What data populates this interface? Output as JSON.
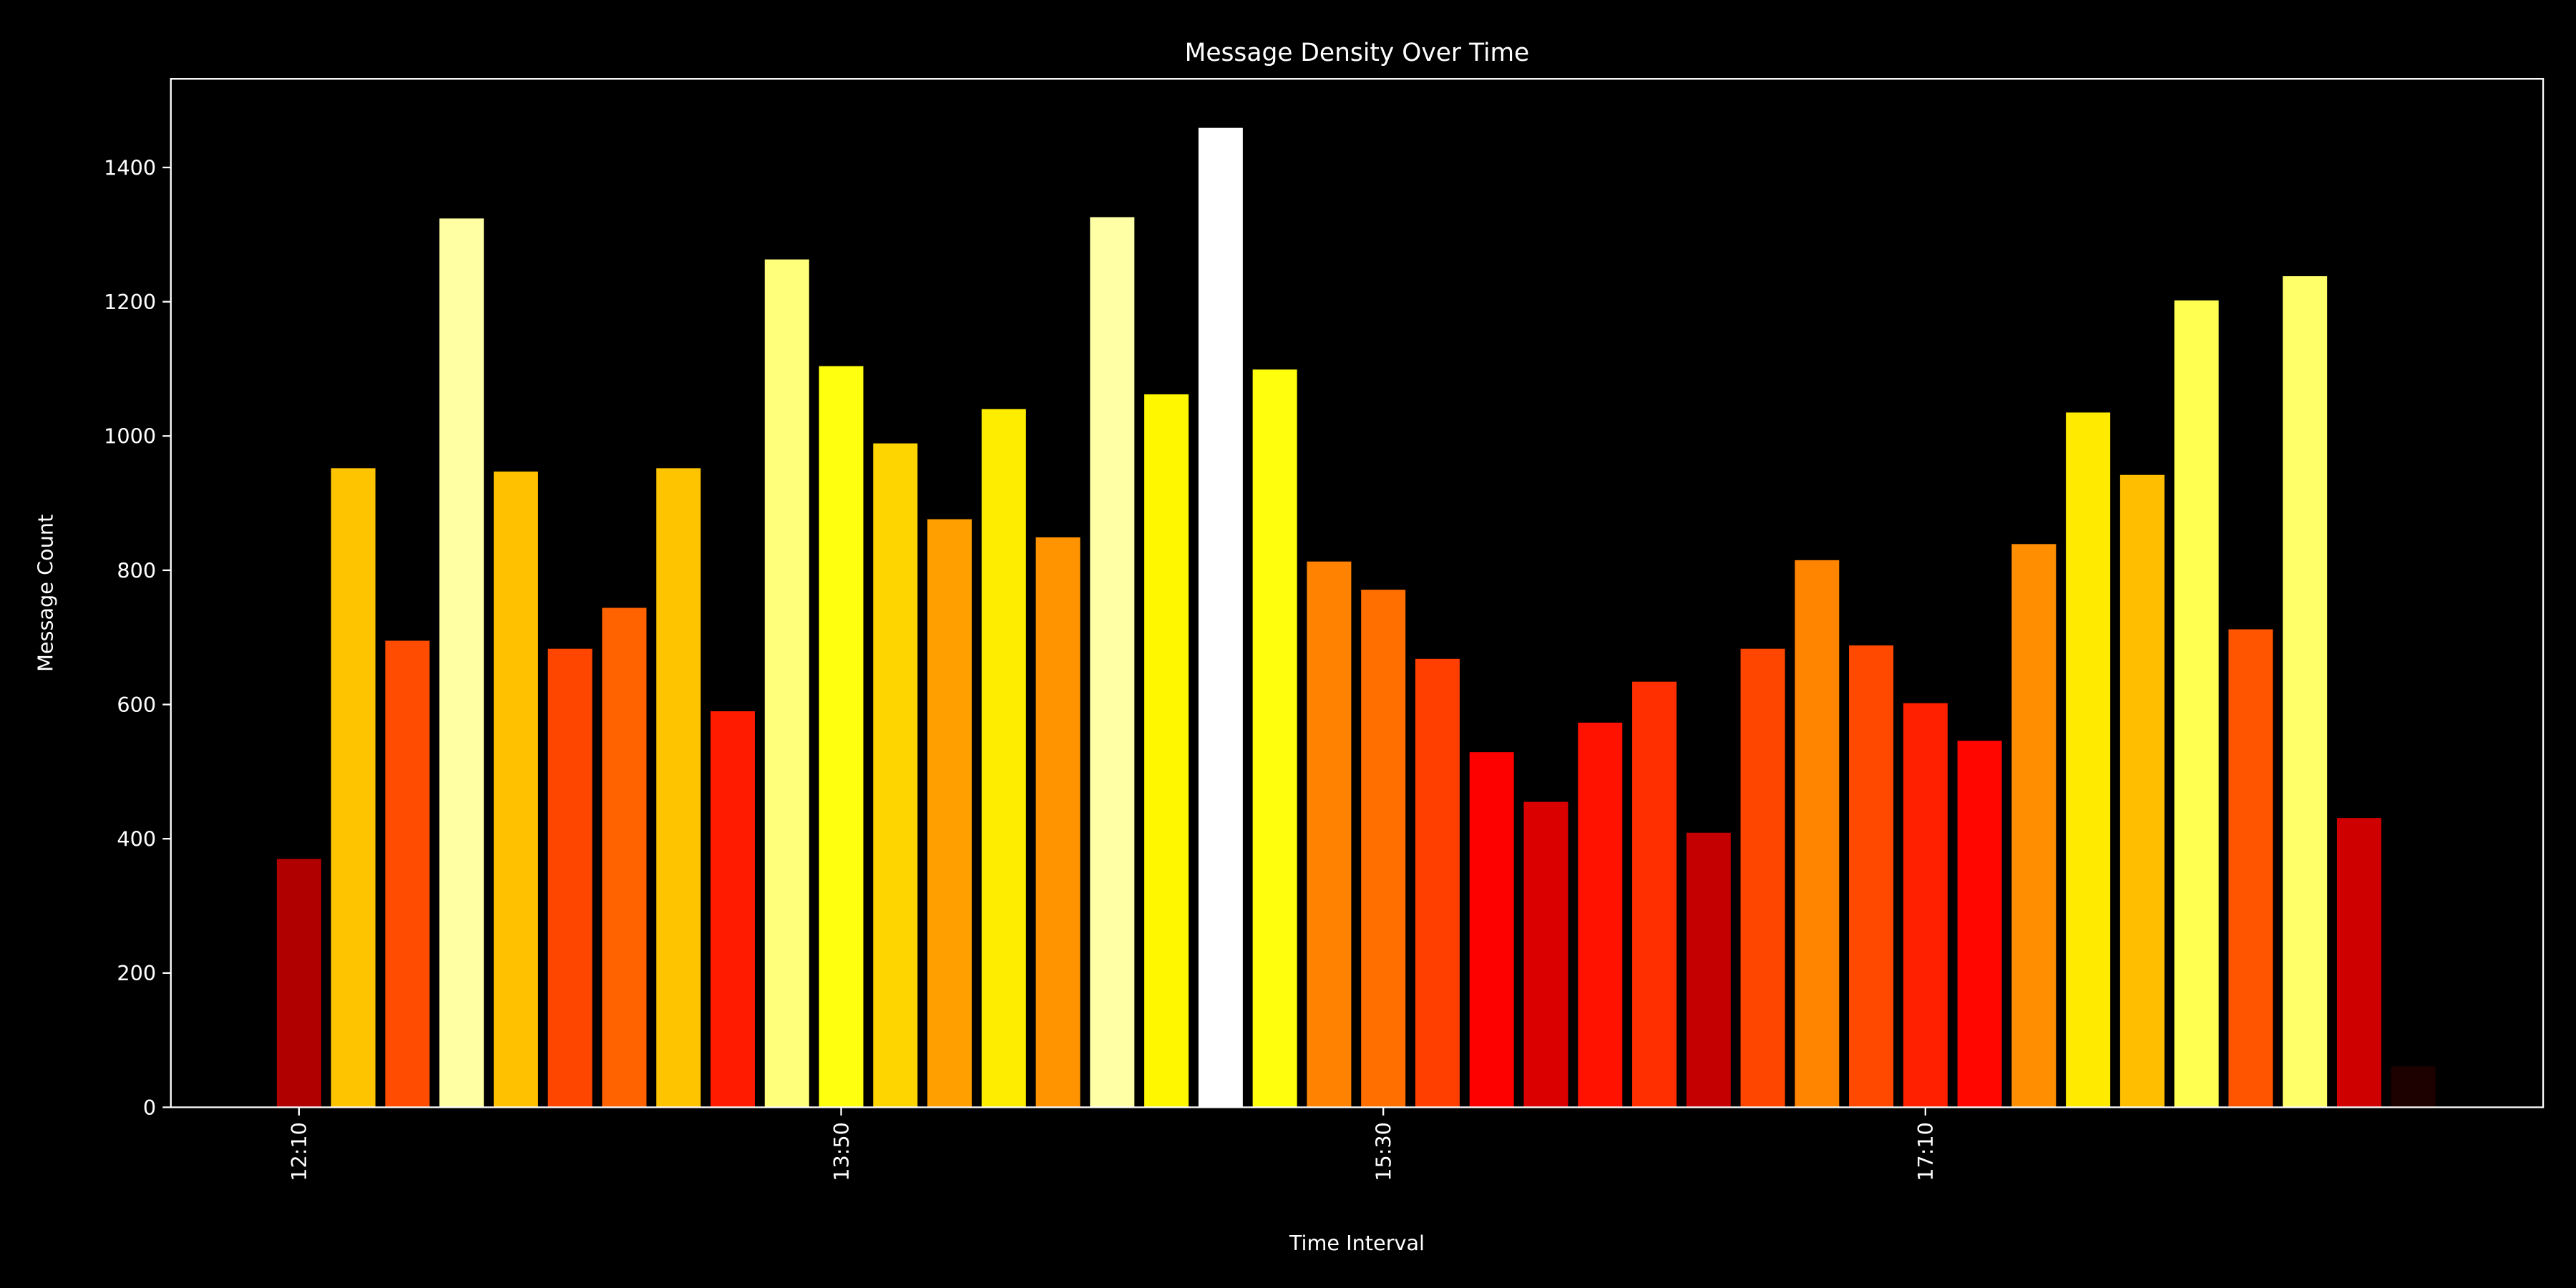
{
  "chart_data": {
    "type": "bar",
    "title": "Message Density Over Time",
    "x_label": "Time Interval",
    "y_label": "Message Count",
    "categories": [
      "12:10",
      null,
      null,
      null,
      null,
      null,
      null,
      null,
      null,
      null,
      "13:50",
      null,
      null,
      null,
      null,
      null,
      null,
      null,
      null,
      null,
      "15:30",
      null,
      null,
      null,
      null,
      null,
      null,
      null,
      null,
      null,
      "17:10",
      null,
      null,
      null,
      null,
      null,
      null,
      null,
      null,
      null
    ],
    "values": [
      370,
      952,
      695,
      1324,
      947,
      683,
      744,
      952,
      590,
      1263,
      1104,
      989,
      876,
      1040,
      849,
      1326,
      1062,
      1459,
      1099,
      813,
      771,
      668,
      529,
      455,
      573,
      634,
      409,
      683,
      815,
      688,
      602,
      546,
      839,
      1035,
      942,
      1202,
      712,
      1238,
      431,
      61
    ],
    "colormap": "hot",
    "ylim": [
      0,
      1532
    ],
    "yticks": [
      0,
      200,
      400,
      600,
      800,
      1000,
      1200,
      1400
    ]
  }
}
